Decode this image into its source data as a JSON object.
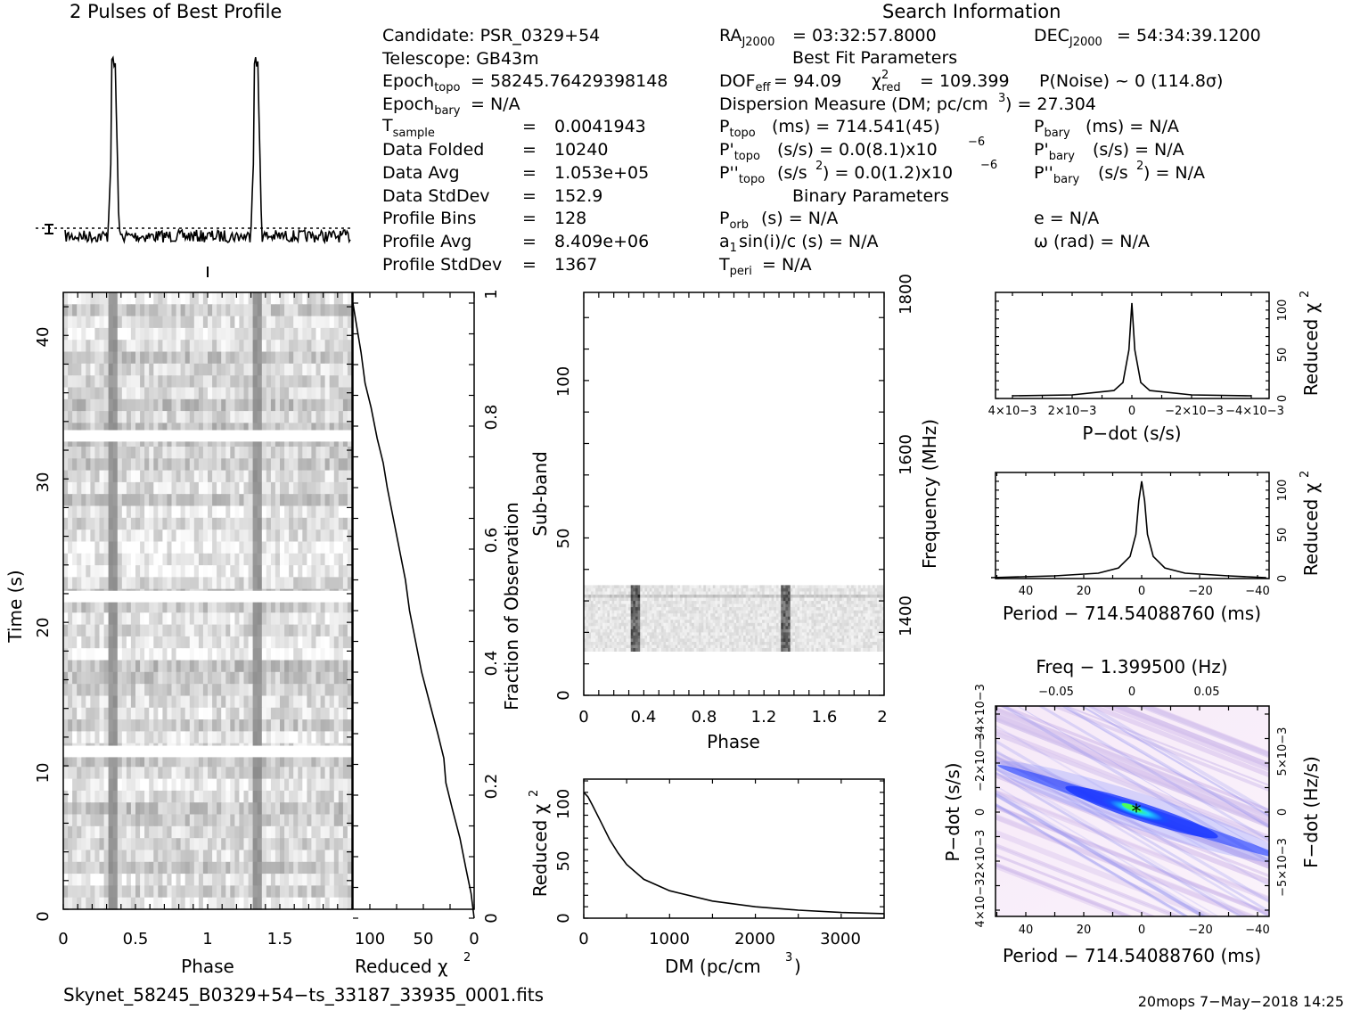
{
  "titles": {
    "profile": "2 Pulses of Best Profile",
    "search": "Search Information",
    "best_fit": "Best Fit Parameters",
    "binary": "Binary Parameters"
  },
  "info_left": [
    {
      "name": "Candidate",
      "value": "Candidate:  PSR_0329+54"
    },
    {
      "name": "Telescope",
      "value": "Telescope:  GB43m"
    },
    {
      "name": "Epoch topo",
      "value": "= 58245.76429398148"
    },
    {
      "name": "Epoch bary",
      "value": "= N/A"
    },
    {
      "name": "T sample",
      "value": "0.0041943"
    },
    {
      "name": "Data Folded",
      "value": "10240"
    },
    {
      "name": "Data Avg",
      "value": "1.053e+05"
    },
    {
      "name": "Data StdDev",
      "value": "152.9"
    },
    {
      "name": "Profile Bins",
      "value": "128"
    },
    {
      "name": "Profile Avg",
      "value": "8.409e+06"
    },
    {
      "name": "Profile StdDev",
      "value": "1367"
    }
  ],
  "info_mid": {
    "ra": "= 03:32:57.8000",
    "dec": "= 54:34:39.1200",
    "dof": "= 94.09",
    "chi2red": "= 109.399",
    "pnoise": "P(Noise) ~ 0    (114.8σ)",
    "dm": "Dispersion Measure (DM; pc/cm",
    "dm_value": ") = 27.304",
    "ptopo": "(ms) =  714.541(45)",
    "pdtopo": "(s/s) = 0.0(8.1)x10",
    "pddtopo": "(s/s",
    "pddtopo_val": ") = 0.0(1.2)x10",
    "exp": "−6",
    "pbary": "(ms) = N/A",
    "pdbary": "(s/s) = N/A",
    "pddbary": "(s/s",
    "pddbary_val": ") = N/A",
    "porb": "(s) = N/A",
    "a1": "sin(i)/c (s) = N/A",
    "tperi": "= N/A",
    "ecc": "e = N/A",
    "omega": "ω (rad) = N/A"
  },
  "axes": {
    "time": "Time (s)",
    "phase": "Phase",
    "reduced_chi2": "Reduced χ",
    "fraction_obs": "Fraction of Observation",
    "subband": "Sub-band",
    "frequency": "Frequency (MHz)",
    "dm": "DM (pc/cm",
    "pdot": "P−dot (s/s)",
    "period": "Period − 714.54088760 (ms)",
    "freq_top": "Freq − 1.399500 (Hz)",
    "pdot_left": "P−dot (s/s)",
    "fdot_right": "F−dot (Hz/s)"
  },
  "footer": {
    "filename": "Skynet_58245_B0329+54−ts_33187_33935_0001.fits",
    "stamp": "20mops  7−May−2018 14:25"
  },
  "chart_data": [
    {
      "type": "line",
      "title": "2 Pulses of Best Profile",
      "x": [
        0.0,
        0.3,
        0.32,
        0.33,
        0.34,
        0.35,
        0.36,
        0.38,
        0.5,
        1.0,
        1.3,
        1.32,
        1.33,
        1.34,
        1.35,
        1.36,
        1.38,
        1.5,
        2.0
      ],
      "y_relative": [
        0.0,
        0.0,
        0.35,
        1.0,
        0.82,
        0.92,
        0.6,
        0.0,
        0.0,
        0.0,
        0.0,
        0.35,
        1.0,
        0.82,
        0.92,
        0.6,
        0.0,
        0.0,
        0.0
      ]
    },
    {
      "type": "heatmap",
      "name": "time-phase",
      "xlabel": "Phase",
      "ylabel": "Time (s)",
      "xlim": [
        0,
        2
      ],
      "ylim": [
        0,
        43
      ],
      "xticks": [
        "0",
        "0.5",
        "1",
        "1.5"
      ],
      "yticks": [
        "0",
        "10",
        "20",
        "30",
        "40"
      ],
      "pulse_phases": [
        0.34,
        1.34
      ]
    },
    {
      "type": "line",
      "name": "chi2-vs-time",
      "xlabel": "Reduced χ2",
      "ylabel": "Fraction of Observation",
      "xlim": [
        120,
        0
      ],
      "ylim": [
        0,
        1
      ],
      "xticks": [
        "100",
        "50",
        "0"
      ],
      "yticks": [
        "0",
        "0.2",
        "0.4",
        "0.6",
        "0.8",
        "1"
      ],
      "x": [
        0,
        3,
        8,
        14,
        22,
        28,
        30,
        36,
        44,
        52,
        58,
        64,
        68,
        74,
        80,
        86,
        90,
        96,
        102,
        108,
        112,
        116,
        120
      ],
      "y": [
        0.0,
        0.04,
        0.08,
        0.13,
        0.18,
        0.22,
        0.26,
        0.3,
        0.35,
        0.4,
        0.45,
        0.5,
        0.55,
        0.6,
        0.65,
        0.7,
        0.74,
        0.78,
        0.83,
        0.87,
        0.92,
        0.96,
        1.0
      ]
    },
    {
      "type": "heatmap",
      "name": "subband-phase",
      "xlabel": "Phase",
      "ylabel": "Sub-band",
      "y2label": "Frequency (MHz)",
      "xlim": [
        0,
        2
      ],
      "ylim": [
        0,
        128
      ],
      "xticks": [
        "0",
        "0.4",
        "0.8",
        "1.2",
        "1.6",
        "2"
      ],
      "yticks": [
        "0",
        "50",
        "100"
      ],
      "y2ticks": [
        "1400",
        "1600",
        "1800"
      ],
      "data_band": [
        14,
        35
      ],
      "pulse_phases": [
        0.34,
        1.34
      ]
    },
    {
      "type": "line",
      "name": "dm-curve",
      "xlabel": "DM (pc/cm3)",
      "ylabel": "Reduced χ2",
      "xlim": [
        0,
        3500
      ],
      "ylim": [
        0,
        120
      ],
      "xticks": [
        "0",
        "1000",
        "2000",
        "3000"
      ],
      "yticks": [
        "0",
        "50",
        "100"
      ],
      "x": [
        0,
        50,
        100,
        200,
        300,
        400,
        500,
        700,
        1000,
        1500,
        2000,
        2500,
        3000,
        3500
      ],
      "y": [
        110,
        106,
        99,
        84,
        69,
        57,
        47,
        34,
        24,
        15,
        10,
        7,
        5,
        4
      ]
    },
    {
      "type": "line",
      "name": "pdot-curve",
      "xlabel": "P−dot (s/s)",
      "ylabel": "Reduced χ2",
      "xlim": [
        0.004,
        -0.004
      ],
      "ylim": [
        0,
        120
      ],
      "xticks": [
        "4×10−3",
        "2×10−3",
        "0",
        "−2×10−3",
        "−4×10−3"
      ],
      "yticks": [
        "0",
        "50",
        "100"
      ],
      "x": [
        0.004,
        0.002,
        0.0006,
        0.0003,
        0.0001,
        0.0,
        -0.0001,
        -0.0003,
        -0.0006,
        -0.002,
        -0.004
      ],
      "y": [
        3,
        4,
        9,
        18,
        55,
        108,
        55,
        18,
        9,
        4,
        3
      ]
    },
    {
      "type": "line",
      "name": "period-curve",
      "xlabel": "Period − 714.54088760 (ms)",
      "ylabel": "Reduced χ2",
      "xlim": [
        52,
        -43
      ],
      "ylim": [
        0,
        120
      ],
      "xticks": [
        "40",
        "20",
        "0",
        "−20",
        "−40"
      ],
      "yticks": [
        "0",
        "50",
        "100"
      ],
      "x": [
        52,
        30,
        15,
        8,
        4,
        2,
        1,
        0,
        -1,
        -2,
        -4,
        -8,
        -15,
        -30,
        -43
      ],
      "y": [
        1,
        3,
        6,
        12,
        25,
        50,
        88,
        110,
        88,
        50,
        25,
        12,
        6,
        3,
        1
      ]
    },
    {
      "type": "heatmap",
      "name": "period-pdot",
      "xlabel": "Period − 714.54088760 (ms)",
      "ylabel": "P−dot (s/s)",
      "x2label": "Freq − 1.399500 (Hz)",
      "y2label": "F−dot (Hz/s)",
      "xticks": [
        "40",
        "20",
        "0",
        "−20",
        "−40"
      ],
      "x2ticks": [
        "−0.05",
        "0",
        "0.05"
      ],
      "yticks": [
        "4×10−3",
        "2×10−3",
        "0",
        "−2×10−3",
        "−4×10−3"
      ],
      "y2ticks": [
        "−5×10−3",
        "0",
        "5×10−3"
      ]
    }
  ]
}
